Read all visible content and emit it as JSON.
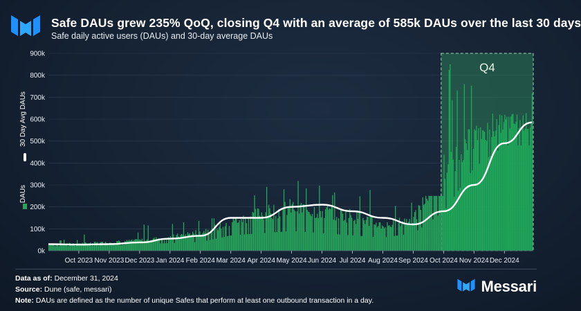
{
  "header": {
    "title": "Safe DAUs grew 235% QoQ, closing Q4 with an average of 585k DAUs over the last 30 days",
    "subtitle": "Safe daily active users (DAUs) and 30-day average DAUs"
  },
  "footer": {
    "data_as_of_label": "Data as of:",
    "data_as_of": "December 31, 2024",
    "source_label": "Source:",
    "source": "Dune (safe, messari)",
    "note_label": "Note:",
    "note": "DAUs are defined as the number of unique Safes that perform at least one outbound transaction in a day."
  },
  "brand": {
    "name": "Messari"
  },
  "colors": {
    "bar": "#27a35b",
    "bar_q4": "#1fa95a",
    "line": "#ffffff",
    "highlight": "#2f8f5b"
  },
  "chart_data": {
    "type": "bar",
    "title": "Safe daily active users (DAUs) and 30-day average DAUs",
    "xlabel": "",
    "ylabel_left_series": "DAUs",
    "ylabel_line_series": "30 Day Avg DAUs",
    "ylim": [
      0,
      900000
    ],
    "y_ticks": [
      0,
      100000,
      200000,
      300000,
      400000,
      500000,
      600000,
      700000,
      800000,
      900000
    ],
    "y_tick_labels": [
      "0k",
      "100k",
      "200k",
      "300k",
      "400k",
      "500k",
      "600k",
      "700k",
      "800k",
      "900k"
    ],
    "x_tick_labels": [
      "Oct 2023",
      "Nov 2023",
      "Dec 2023",
      "Jan 2024",
      "Feb 2024",
      "Mar 2024",
      "Apr 2024",
      "May 2024",
      "Jun 2024",
      "Jul 2024",
      "Aug 2024",
      "Sep 2024",
      "Oct 2024",
      "Nov 2024",
      "Dec 2024"
    ],
    "highlight": {
      "label": "Q4",
      "start": "Oct 2024",
      "end": "Dec 2024"
    },
    "series": [
      {
        "name": "DAUs",
        "kind": "bar",
        "monthly_values": [
          {
            "month": "Sep 2023",
            "min": 20000,
            "typical": 30000,
            "peak": 55000
          },
          {
            "month": "Oct 2023",
            "min": 22000,
            "typical": 35000,
            "peak": 75000
          },
          {
            "month": "Nov 2023",
            "min": 25000,
            "typical": 40000,
            "peak": 90000
          },
          {
            "month": "Dec 2023",
            "min": 30000,
            "typical": 50000,
            "peak": 130000
          },
          {
            "month": "Jan 2024",
            "min": 35000,
            "typical": 65000,
            "peak": 140000
          },
          {
            "month": "Feb 2024",
            "min": 40000,
            "typical": 90000,
            "peak": 150000
          },
          {
            "month": "Mar 2024",
            "min": 70000,
            "typical": 140000,
            "peak": 260000
          },
          {
            "month": "Apr 2024",
            "min": 80000,
            "typical": 180000,
            "peak": 310000
          },
          {
            "month": "May 2024",
            "min": 90000,
            "typical": 210000,
            "peak": 330000
          },
          {
            "month": "Jun 2024",
            "min": 80000,
            "typical": 190000,
            "peak": 300000
          },
          {
            "month": "Jul 2024",
            "min": 70000,
            "typical": 170000,
            "peak": 300000
          },
          {
            "month": "Aug 2024",
            "min": 60000,
            "typical": 120000,
            "peak": 240000
          },
          {
            "month": "Sep 2024",
            "min": 80000,
            "typical": 150000,
            "peak": 250000
          },
          {
            "month": "Oct 2024",
            "min": 180000,
            "typical": 400000,
            "peak": 850000
          },
          {
            "month": "Nov 2024",
            "min": 380000,
            "typical": 540000,
            "peak": 650000
          },
          {
            "month": "Dec 2024",
            "min": 480000,
            "typical": 600000,
            "peak": 740000
          }
        ]
      },
      {
        "name": "30 Day Avg DAUs",
        "kind": "line",
        "x": [
          "Sep 2023",
          "Oct 2023",
          "Nov 2023",
          "Dec 2023",
          "Jan 2024",
          "Feb 2024",
          "Mar 2024",
          "Apr 2024",
          "May 2024",
          "Jun 2024",
          "Jul 2024",
          "Aug 2024",
          "Sep 2024",
          "Oct 2024",
          "Nov 2024",
          "Dec 2024",
          "Dec 31 2024"
        ],
        "values": [
          30000,
          28000,
          30000,
          38000,
          55000,
          68000,
          150000,
          150000,
          200000,
          210000,
          180000,
          150000,
          120000,
          180000,
          300000,
          490000,
          585000
        ]
      }
    ]
  }
}
